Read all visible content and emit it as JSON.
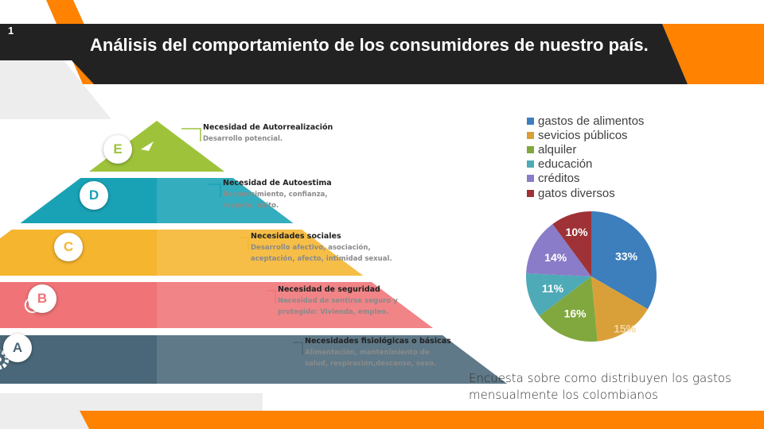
{
  "slide": {
    "number": "1",
    "title": "Análisis del comportamiento de los consumidores de nuestro país."
  },
  "colors": {
    "dark": "#222222",
    "orange": "#ff8200",
    "level_E": "#9ec33b",
    "level_D": "#19a2b6",
    "level_C": "#f5b52e",
    "level_B": "#ef7377",
    "level_A": "#496778"
  },
  "pyramid": {
    "levels": [
      {
        "letter": "E",
        "title": "Necesidad de Autorrealización",
        "desc": [
          "Desarrollo potencial."
        ],
        "icon": "paper-plane-icon"
      },
      {
        "letter": "D",
        "title": "Necesidad de Autoestima",
        "desc": [
          "Reconocimiento, confianza,",
          "respeto, éxito."
        ],
        "icon": "eye-icon"
      },
      {
        "letter": "C",
        "title": "Necesidades sociales",
        "desc": [
          "Desarrollo afectivo, asociación,",
          "aceptación, afecto, intimidad sexual."
        ],
        "icon": "trophy-icon"
      },
      {
        "letter": "B",
        "title": "Necesidad de seguridad",
        "desc": [
          "Necesidad de sentirse seguro y",
          "protegido: Vivienda, empleo."
        ],
        "icon": "target-icon"
      },
      {
        "letter": "A",
        "title": "Necesidades fisiológicas o básicas",
        "desc": [
          "Alimentación, mantenimiento de",
          "salud, respiración,descanso, sexo."
        ],
        "icon": "gear-icon"
      }
    ]
  },
  "chart_data": {
    "type": "pie",
    "title": "",
    "legend_position": "top",
    "categories": [
      "gastos de alimentos",
      "sevicios públicos",
      "alquiler",
      "educación",
      "créditos",
      "gatos diversos"
    ],
    "values": [
      33,
      15,
      16,
      11,
      14,
      10
    ],
    "labels": [
      "33%",
      "15%",
      "16%",
      "11%",
      "14%",
      "10%"
    ],
    "colors": [
      "#3d7ebd",
      "#d9a03a",
      "#80a83e",
      "#4eaab7",
      "#8a7cc8",
      "#9e3236"
    ]
  },
  "caption": [
    "Encuesta sobre como distribuyen los gastos",
    "mensualmente los colombianos"
  ]
}
